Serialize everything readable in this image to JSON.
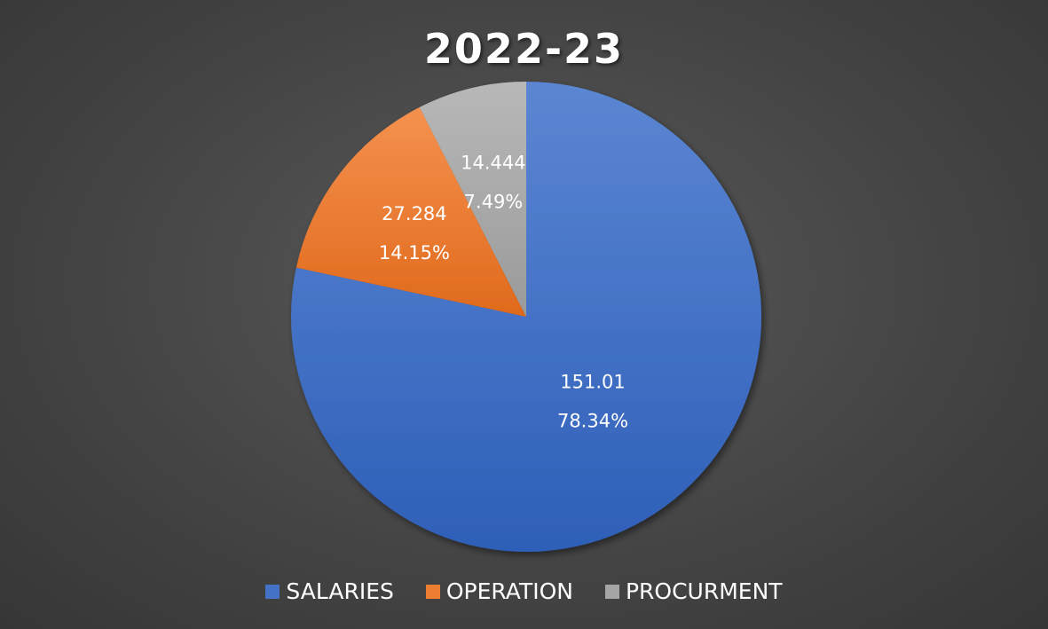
{
  "chart_data": {
    "type": "pie",
    "title": "2022-23",
    "categories": [
      "SALARIES",
      "OPERATION",
      "PROCURMENT"
    ],
    "values": [
      151.01,
      27.284,
      14.444
    ],
    "percent_labels": [
      "78.34%",
      "14.15%",
      "7.49%"
    ],
    "value_labels": [
      "151.01",
      "27.284",
      "14.444"
    ],
    "colors": [
      "#4472c4",
      "#ed7d31",
      "#a5a5a5"
    ],
    "legend_position": "bottom",
    "start_angle_deg": 0,
    "direction": "clockwise"
  }
}
